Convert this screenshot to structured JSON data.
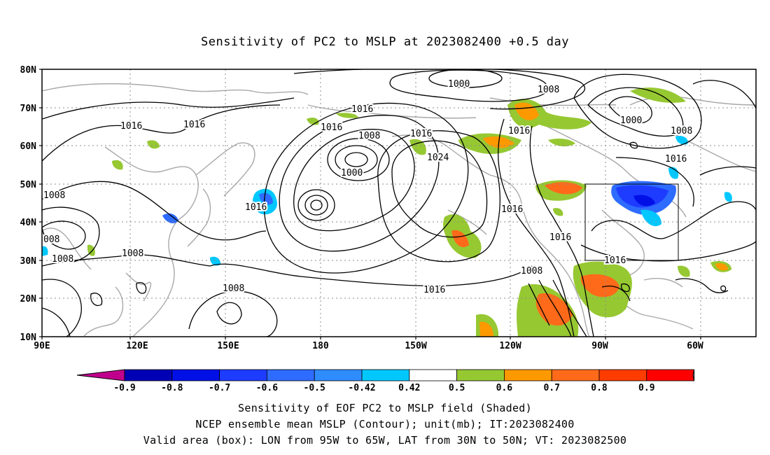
{
  "title": "Sensitivity of PC2 to MSLP at 2023082400 +0.5 day",
  "lat_labels": [
    "80N",
    "70N",
    "60N",
    "50N",
    "40N",
    "30N",
    "20N",
    "10N"
  ],
  "lon_labels": [
    "90E",
    "120E",
    "150E",
    "180",
    "150W",
    "120W",
    "90W",
    "60W"
  ],
  "colorbar": {
    "labels": [
      "-0.9",
      "-0.8",
      "-0.7",
      "-0.6",
      "-0.5",
      "-0.42",
      "0.42",
      "0.5",
      "0.6",
      "0.7",
      "0.8",
      "0.9"
    ],
    "colors": [
      "#c0008c",
      "#0000b4",
      "#0010e6",
      "#1e3cff",
      "#2e6cff",
      "#2f8cff",
      "#00c8ff",
      "#ffffff",
      "#96c832",
      "#ff9900",
      "#ff6a1a",
      "#ff3c00",
      "#ff0000",
      "#ffa0c8"
    ]
  },
  "contour_labels": [
    "1000",
    "1008",
    "1016",
    "1016",
    "1016",
    "1008",
    "1016",
    "1000",
    "1016",
    "1024",
    "1008",
    "1008",
    "1016",
    "1016",
    "1000",
    "1008",
    "1016",
    "1008",
    "1016",
    "1016",
    "1008",
    "1016",
    "008",
    "1008",
    "1016",
    "1016"
  ],
  "box": {
    "lon_from": "95W",
    "lon_to": "65W",
    "lat_from": "30N",
    "lat_to": "50N"
  },
  "footer": [
    "Sensitivity of EOF PC2 to MSLP field (Shaded)",
    "NCEP ensemble mean MSLP (Contour); unit(mb); IT:2023082400",
    "Valid area (box): LON from 95W to 65W, LAT from 30N to 50N; VT: 2023082500"
  ]
}
